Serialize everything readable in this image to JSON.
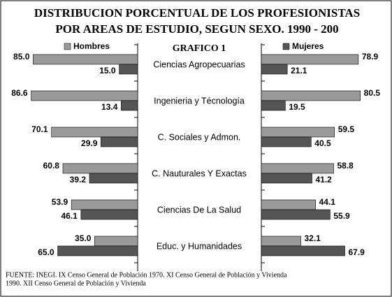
{
  "title": [
    "DISTRIBUCION PORCENTUAL DE LOS PROFESIONISTAS",
    "POR AREAS DE ESTUDIO, SEGUN SEXO. 1990 - 200"
  ],
  "subtitle": "GRAFICO 1",
  "source": [
    "FUENTE: INEGI. IX Censo General de Población 1970. XI Censo General de Población y Vivienda",
    "1990. XII Censo General de Población y Vivienda"
  ],
  "chart_data": [
    {
      "type": "bar",
      "orientation": "horizontal-left",
      "categories": [
        "Ciencias Agropecuarias",
        "Ingenieria y Técnología",
        "C. Sociales y Admon.",
        "C. Nauturales Y Exactas",
        "Ciencias De La Salud",
        "Educ. y Humanidades"
      ],
      "xlim": [
        0,
        100
      ],
      "series": [
        {
          "name": "Hombres",
          "color": "#9a9a9a",
          "values": [
            85.0,
            86.6,
            70.1,
            60.8,
            53.9,
            35.0
          ],
          "value_labels": [
            "85.0",
            "86.6",
            "70.1",
            "60.8",
            "53.9",
            "35.0"
          ]
        },
        {
          "color": "#555555",
          "values": [
            15.0,
            13.4,
            29.9,
            39.2,
            46.1,
            65.0
          ],
          "value_labels": [
            "15.0",
            "13.4",
            "29.9",
            "39.2",
            "46.1",
            "65.0"
          ]
        }
      ]
    },
    {
      "type": "bar",
      "orientation": "horizontal-right",
      "xlim": [
        0,
        100
      ],
      "series": [
        {
          "color": "#9a9a9a",
          "values": [
            78.9,
            80.5,
            59.5,
            58.8,
            44.1,
            32.1
          ]
        },
        {
          "name": "Mujeres",
          "color": "#555555",
          "values": [
            21.1,
            19.5,
            40.5,
            41.2,
            55.9,
            67.9
          ]
        }
      ]
    }
  ]
}
